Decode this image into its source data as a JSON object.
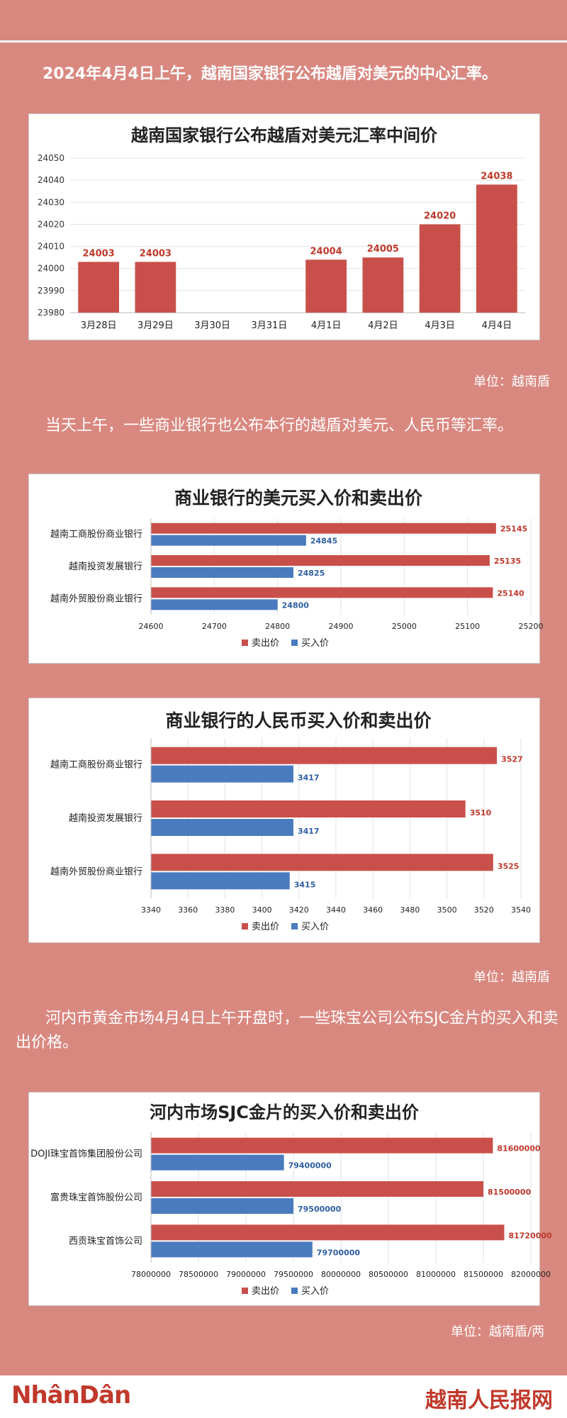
{
  "header": {
    "intro": "2024年4月4日上午，越南国家银行公布越盾对美元的中心汇率。",
    "para2": "当天上午，一些商业银行也公布本行的越盾对美元、人民币等汇率。",
    "para3": "河内市黄金市场4月4日上午开盘时，一些珠宝公司公布SJC金片的买入和卖出价格。"
  },
  "units": {
    "u1": "单位：越南盾",
    "u2": "单位：越南盾",
    "u3": "单位：越南盾/两"
  },
  "footer": {
    "logo_left": "NhânDân",
    "logo_right": "越南人民报网"
  },
  "colors": {
    "sell": "#c9504a",
    "buy": "#4a7bbf",
    "background": "#d98880"
  },
  "chart_data": [
    {
      "type": "bar",
      "title": "越南国家银行公布越盾对美元汇率中间价",
      "categories": [
        "3月28日",
        "3月29日",
        "3月30日",
        "3月31日",
        "4月1日",
        "4月2日",
        "4月3日",
        "4月4日"
      ],
      "values": [
        24003,
        24003,
        null,
        null,
        24004,
        24005,
        24020,
        24038
      ],
      "ylim": [
        23980,
        24050
      ],
      "yticks": [
        "23980",
        "23990",
        "24000",
        "24010",
        "24020",
        "24030",
        "24040",
        "24050"
      ]
    },
    {
      "type": "bar",
      "orientation": "horizontal",
      "title": "商业银行的美元买入价和卖出价",
      "categories": [
        "越南工商股份商业银行",
        "越南投资发展银行",
        "越南外贸股份商业银行"
      ],
      "series": [
        {
          "name": "卖出价",
          "values": [
            25145,
            25135,
            25140
          ]
        },
        {
          "name": "买入价",
          "values": [
            24845,
            24825,
            24800
          ]
        }
      ],
      "xlim": [
        24600,
        25200
      ],
      "xticks": [
        "24600",
        "24700",
        "24800",
        "24900",
        "25000",
        "25100",
        "25200"
      ],
      "legend": "bottom"
    },
    {
      "type": "bar",
      "orientation": "horizontal",
      "title": "商业银行的人民币买入价和卖出价",
      "categories": [
        "越南工商股份商业银行",
        "越南投资发展银行",
        "越南外贸股份商业银行"
      ],
      "series": [
        {
          "name": "卖出价",
          "values": [
            3527,
            3510,
            3525
          ]
        },
        {
          "name": "买入价",
          "values": [
            3417,
            3417,
            3415
          ]
        }
      ],
      "xlim": [
        3340,
        3540
      ],
      "xticks": [
        "3340",
        "3360",
        "3380",
        "3400",
        "3420",
        "3440",
        "3460",
        "3480",
        "3500",
        "3520",
        "3540"
      ],
      "legend": "bottom"
    },
    {
      "type": "bar",
      "orientation": "horizontal",
      "title": "河内市场SJC金片的买入价和卖出价",
      "categories": [
        "DOJI珠宝首饰集团股份公司",
        "富贵珠宝首饰股份公司",
        "西贡珠宝首饰公司"
      ],
      "series": [
        {
          "name": "卖出价",
          "values": [
            81600000,
            81500000,
            81720000
          ]
        },
        {
          "name": "买入价",
          "values": [
            79400000,
            79500000,
            79700000
          ]
        }
      ],
      "xlim": [
        78000000,
        82000000
      ],
      "xticks": [
        "78000000",
        "78500000",
        "79000000",
        "79500000",
        "80000000",
        "80500000",
        "81000000",
        "81500000",
        "82000000"
      ],
      "legend": "bottom"
    }
  ]
}
